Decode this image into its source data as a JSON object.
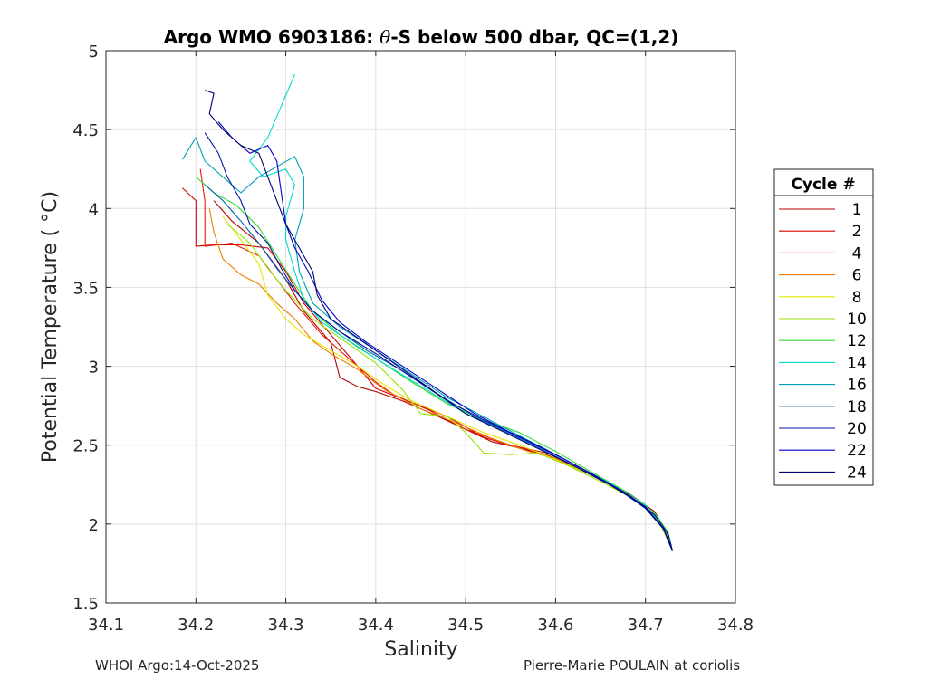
{
  "chart_data": {
    "type": "line",
    "title": "Argo WMO 6903186: θ-S below 500 dbar,  QC=(1,2)",
    "title_parts": {
      "prefix": "Argo WMO 6903186: ",
      "theta": "θ",
      "suffix": "-S below 500 dbar,  QC=(1,2)"
    },
    "xlabel": "Salinity",
    "ylabel": "Potential Temperature ( °C)",
    "xlim": [
      34.1,
      34.8
    ],
    "ylim": [
      1.5,
      5.0
    ],
    "xticks": [
      34.1,
      34.2,
      34.3,
      34.4,
      34.5,
      34.6,
      34.7,
      34.8
    ],
    "xtick_labels": [
      "34.1",
      "34.2",
      "34.3",
      "34.4",
      "34.5",
      "34.6",
      "34.7",
      "34.8"
    ],
    "yticks": [
      1.5,
      2.0,
      2.5,
      3.0,
      3.5,
      4.0,
      4.5,
      5.0
    ],
    "ytick_labels": [
      "1.5",
      "2",
      "2.5",
      "3",
      "3.5",
      "4",
      "4.5",
      "5"
    ],
    "grid": true,
    "legend_title": "Cycle #",
    "legend_position": "right",
    "series": [
      {
        "name": "1",
        "color": "#b40000",
        "points": [
          [
            34.22,
            4.05
          ],
          [
            34.24,
            3.92
          ],
          [
            34.27,
            3.78
          ],
          [
            34.3,
            3.55
          ],
          [
            34.32,
            3.35
          ],
          [
            34.35,
            3.15
          ],
          [
            34.36,
            2.93
          ],
          [
            34.38,
            2.87
          ],
          [
            34.4,
            2.84
          ],
          [
            34.43,
            2.78
          ],
          [
            34.47,
            2.68
          ],
          [
            34.5,
            2.6
          ],
          [
            34.53,
            2.52
          ],
          [
            34.57,
            2.47
          ],
          [
            34.6,
            2.41
          ],
          [
            34.64,
            2.31
          ],
          [
            34.68,
            2.2
          ],
          [
            34.71,
            2.08
          ],
          [
            34.72,
            1.98
          ],
          [
            34.725,
            1.93
          ],
          [
            34.73,
            1.83
          ]
        ]
      },
      {
        "name": "2",
        "color": "#d20000",
        "points": [
          [
            34.185,
            4.13
          ],
          [
            34.2,
            4.05
          ],
          [
            34.2,
            3.9
          ],
          [
            34.2,
            3.76
          ],
          [
            34.22,
            3.77
          ],
          [
            34.25,
            3.77
          ],
          [
            34.28,
            3.75
          ],
          [
            34.3,
            3.6
          ],
          [
            34.32,
            3.4
          ],
          [
            34.35,
            3.2
          ],
          [
            34.38,
            3.0
          ],
          [
            34.4,
            2.86
          ],
          [
            34.44,
            2.77
          ],
          [
            34.48,
            2.68
          ],
          [
            34.52,
            2.55
          ],
          [
            34.56,
            2.48
          ],
          [
            34.59,
            2.44
          ],
          [
            34.62,
            2.36
          ],
          [
            34.66,
            2.26
          ],
          [
            34.7,
            2.12
          ],
          [
            34.72,
            1.98
          ],
          [
            34.73,
            1.83
          ]
        ]
      },
      {
        "name": "4",
        "color": "#e61a00",
        "points": [
          [
            34.205,
            4.25
          ],
          [
            34.21,
            4.05
          ],
          [
            34.21,
            3.76
          ],
          [
            34.24,
            3.78
          ],
          [
            34.27,
            3.7
          ],
          [
            34.29,
            3.55
          ],
          [
            34.31,
            3.4
          ],
          [
            34.34,
            3.2
          ],
          [
            34.37,
            3.05
          ],
          [
            34.4,
            2.9
          ],
          [
            34.42,
            2.82
          ],
          [
            34.46,
            2.72
          ],
          [
            34.5,
            2.6
          ],
          [
            34.55,
            2.5
          ],
          [
            34.59,
            2.45
          ],
          [
            34.63,
            2.34
          ],
          [
            34.67,
            2.22
          ],
          [
            34.7,
            2.1
          ],
          [
            34.72,
            1.97
          ],
          [
            34.73,
            1.83
          ]
        ]
      },
      {
        "name": "6",
        "color": "#f07d00",
        "points": [
          [
            34.215,
            4.0
          ],
          [
            34.22,
            3.85
          ],
          [
            34.23,
            3.68
          ],
          [
            34.25,
            3.58
          ],
          [
            34.27,
            3.52
          ],
          [
            34.29,
            3.4
          ],
          [
            34.31,
            3.3
          ],
          [
            34.33,
            3.16
          ],
          [
            34.35,
            3.08
          ],
          [
            34.38,
            2.98
          ],
          [
            34.41,
            2.85
          ],
          [
            34.45,
            2.73
          ],
          [
            34.49,
            2.64
          ],
          [
            34.53,
            2.54
          ],
          [
            34.57,
            2.46
          ],
          [
            34.61,
            2.4
          ],
          [
            34.65,
            2.28
          ],
          [
            34.69,
            2.16
          ],
          [
            34.715,
            2.02
          ],
          [
            34.73,
            1.83
          ]
        ]
      },
      {
        "name": "8",
        "color": "#e6e600",
        "points": [
          [
            34.23,
            3.95
          ],
          [
            34.25,
            3.8
          ],
          [
            34.27,
            3.65
          ],
          [
            34.28,
            3.45
          ],
          [
            34.3,
            3.3
          ],
          [
            34.32,
            3.2
          ],
          [
            34.35,
            3.1
          ],
          [
            34.38,
            3.0
          ],
          [
            34.41,
            2.88
          ],
          [
            34.44,
            2.78
          ],
          [
            34.48,
            2.68
          ],
          [
            34.52,
            2.58
          ],
          [
            34.56,
            2.5
          ],
          [
            34.6,
            2.41
          ],
          [
            34.64,
            2.31
          ],
          [
            34.68,
            2.19
          ],
          [
            34.71,
            2.06
          ],
          [
            34.725,
            1.94
          ],
          [
            34.73,
            1.83
          ]
        ]
      },
      {
        "name": "10",
        "color": "#96e600",
        "points": [
          [
            34.235,
            3.9
          ],
          [
            34.26,
            3.78
          ],
          [
            34.28,
            3.62
          ],
          [
            34.3,
            3.48
          ],
          [
            34.33,
            3.3
          ],
          [
            34.36,
            3.18
          ],
          [
            34.4,
            3.02
          ],
          [
            34.43,
            2.85
          ],
          [
            34.45,
            2.7
          ],
          [
            34.48,
            2.68
          ],
          [
            34.5,
            2.58
          ],
          [
            34.52,
            2.45
          ],
          [
            34.55,
            2.44
          ],
          [
            34.58,
            2.45
          ],
          [
            34.61,
            2.38
          ],
          [
            34.65,
            2.27
          ],
          [
            34.69,
            2.15
          ],
          [
            34.715,
            2.02
          ],
          [
            34.73,
            1.83
          ]
        ]
      },
      {
        "name": "12",
        "color": "#32dc32",
        "points": [
          [
            34.2,
            4.2
          ],
          [
            34.22,
            4.1
          ],
          [
            34.245,
            4.02
          ],
          [
            34.27,
            3.88
          ],
          [
            34.29,
            3.7
          ],
          [
            34.31,
            3.52
          ],
          [
            34.33,
            3.35
          ],
          [
            34.36,
            3.2
          ],
          [
            34.4,
            3.05
          ],
          [
            34.44,
            2.9
          ],
          [
            34.48,
            2.76
          ],
          [
            34.52,
            2.66
          ],
          [
            34.56,
            2.58
          ],
          [
            34.6,
            2.46
          ],
          [
            34.64,
            2.33
          ],
          [
            34.68,
            2.2
          ],
          [
            34.71,
            2.07
          ],
          [
            34.725,
            1.95
          ],
          [
            34.73,
            1.83
          ]
        ]
      },
      {
        "name": "14",
        "color": "#00dcc8",
        "points": [
          [
            34.31,
            4.85
          ],
          [
            34.28,
            4.45
          ],
          [
            34.26,
            4.3
          ],
          [
            34.275,
            4.2
          ],
          [
            34.3,
            4.25
          ],
          [
            34.31,
            4.15
          ],
          [
            34.3,
            3.95
          ],
          [
            34.3,
            3.8
          ],
          [
            34.31,
            3.6
          ],
          [
            34.32,
            3.42
          ],
          [
            34.34,
            3.28
          ],
          [
            34.38,
            3.12
          ],
          [
            34.42,
            2.98
          ],
          [
            34.46,
            2.84
          ],
          [
            34.5,
            2.7
          ],
          [
            34.54,
            2.6
          ],
          [
            34.58,
            2.5
          ],
          [
            34.62,
            2.38
          ],
          [
            34.66,
            2.26
          ],
          [
            34.7,
            2.12
          ],
          [
            34.72,
            1.98
          ],
          [
            34.73,
            1.83
          ]
        ]
      },
      {
        "name": "16",
        "color": "#00a0b4",
        "points": [
          [
            34.185,
            4.31
          ],
          [
            34.2,
            4.45
          ],
          [
            34.21,
            4.3
          ],
          [
            34.23,
            4.2
          ],
          [
            34.25,
            4.1
          ],
          [
            34.27,
            4.2
          ],
          [
            34.31,
            4.33
          ],
          [
            34.32,
            4.2
          ],
          [
            34.32,
            4.0
          ],
          [
            34.31,
            3.8
          ],
          [
            34.315,
            3.6
          ],
          [
            34.33,
            3.4
          ],
          [
            34.36,
            3.25
          ],
          [
            34.4,
            3.1
          ],
          [
            34.44,
            2.95
          ],
          [
            34.48,
            2.8
          ],
          [
            34.52,
            2.68
          ],
          [
            34.56,
            2.56
          ],
          [
            34.6,
            2.44
          ],
          [
            34.64,
            2.32
          ],
          [
            34.68,
            2.19
          ],
          [
            34.71,
            2.06
          ],
          [
            34.725,
            1.94
          ],
          [
            34.73,
            1.83
          ]
        ]
      },
      {
        "name": "18",
        "color": "#0064b4",
        "points": [
          [
            34.21,
            4.15
          ],
          [
            34.23,
            4.05
          ],
          [
            34.25,
            3.92
          ],
          [
            34.27,
            3.78
          ],
          [
            34.29,
            3.62
          ],
          [
            34.31,
            3.48
          ],
          [
            34.33,
            3.35
          ],
          [
            34.36,
            3.22
          ],
          [
            34.39,
            3.1
          ],
          [
            34.43,
            2.97
          ],
          [
            34.47,
            2.82
          ],
          [
            34.51,
            2.68
          ],
          [
            34.55,
            2.57
          ],
          [
            34.59,
            2.46
          ],
          [
            34.63,
            2.34
          ],
          [
            34.67,
            2.22
          ],
          [
            34.7,
            2.1
          ],
          [
            34.72,
            1.97
          ],
          [
            34.73,
            1.83
          ]
        ]
      },
      {
        "name": "20",
        "color": "#0014a0",
        "points": [
          [
            34.21,
            4.48
          ],
          [
            34.225,
            4.35
          ],
          [
            34.235,
            4.2
          ],
          [
            34.25,
            4.05
          ],
          [
            34.26,
            3.9
          ],
          [
            34.28,
            3.78
          ],
          [
            34.295,
            3.62
          ],
          [
            34.31,
            3.48
          ],
          [
            34.33,
            3.35
          ],
          [
            34.36,
            3.22
          ],
          [
            34.4,
            3.08
          ],
          [
            34.44,
            2.93
          ],
          [
            34.48,
            2.78
          ],
          [
            34.52,
            2.66
          ],
          [
            34.56,
            2.55
          ],
          [
            34.6,
            2.44
          ],
          [
            34.64,
            2.32
          ],
          [
            34.68,
            2.19
          ],
          [
            34.71,
            2.06
          ],
          [
            34.725,
            1.94
          ],
          [
            34.73,
            1.83
          ]
        ]
      },
      {
        "name": "22",
        "color": "#0000c8",
        "points": [
          [
            34.225,
            4.55
          ],
          [
            34.24,
            4.45
          ],
          [
            34.26,
            4.35
          ],
          [
            34.28,
            4.4
          ],
          [
            34.29,
            4.3
          ],
          [
            34.295,
            4.1
          ],
          [
            34.3,
            3.9
          ],
          [
            34.31,
            3.75
          ],
          [
            34.325,
            3.6
          ],
          [
            34.34,
            3.42
          ],
          [
            34.36,
            3.28
          ],
          [
            34.39,
            3.15
          ],
          [
            34.43,
            3.0
          ],
          [
            34.47,
            2.85
          ],
          [
            34.51,
            2.7
          ],
          [
            34.55,
            2.58
          ],
          [
            34.59,
            2.47
          ],
          [
            34.63,
            2.35
          ],
          [
            34.67,
            2.22
          ],
          [
            34.7,
            2.1
          ],
          [
            34.72,
            1.97
          ],
          [
            34.73,
            1.83
          ]
        ]
      },
      {
        "name": "24",
        "color": "#00006e",
        "points": [
          [
            34.21,
            4.75
          ],
          [
            34.22,
            4.73
          ],
          [
            34.215,
            4.6
          ],
          [
            34.23,
            4.5
          ],
          [
            34.25,
            4.4
          ],
          [
            34.27,
            4.35
          ],
          [
            34.28,
            4.2
          ],
          [
            34.29,
            4.05
          ],
          [
            34.3,
            3.9
          ],
          [
            34.31,
            3.8
          ],
          [
            34.32,
            3.7
          ],
          [
            34.33,
            3.6
          ],
          [
            34.335,
            3.45
          ],
          [
            34.35,
            3.3
          ],
          [
            34.38,
            3.18
          ],
          [
            34.42,
            3.02
          ],
          [
            34.46,
            2.86
          ],
          [
            34.5,
            2.7
          ],
          [
            34.54,
            2.59
          ],
          [
            34.58,
            2.48
          ],
          [
            34.62,
            2.37
          ],
          [
            34.66,
            2.25
          ],
          [
            34.7,
            2.11
          ],
          [
            34.72,
            1.97
          ],
          [
            34.73,
            1.83
          ]
        ]
      }
    ]
  },
  "footer": {
    "left": "WHOI Argo:14-Oct-2025",
    "right": "Pierre-Marie POULAIN at coriolis"
  }
}
